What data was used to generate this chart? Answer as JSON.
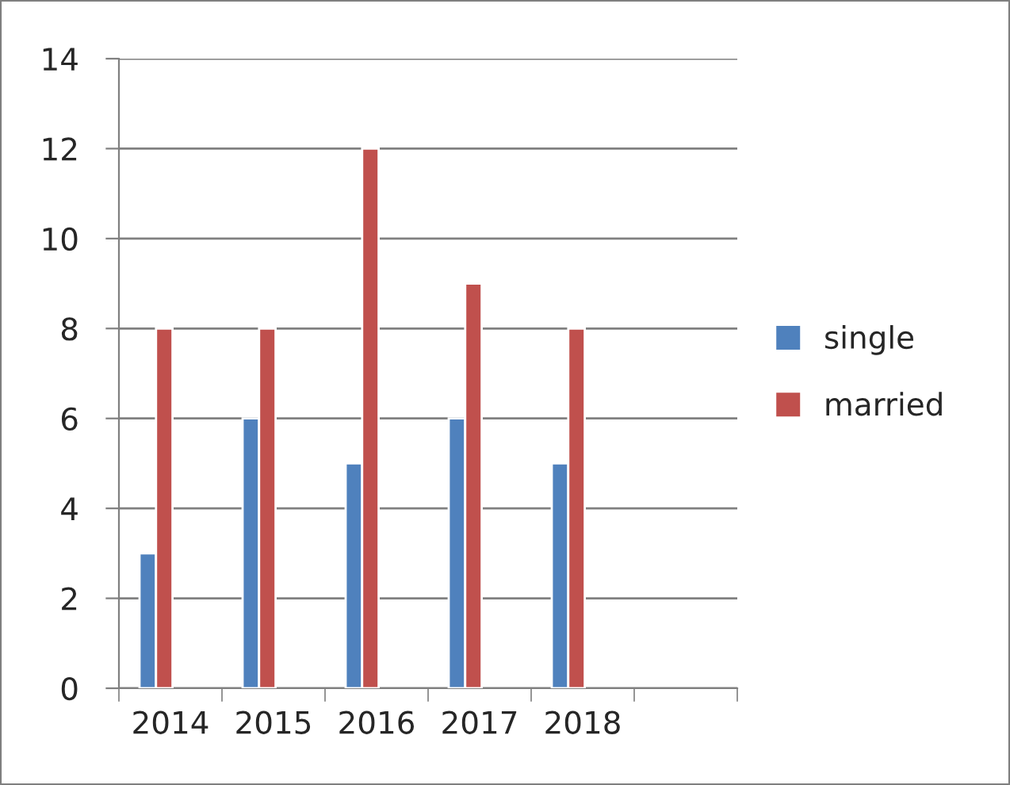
{
  "chart_data": {
    "type": "bar",
    "categories": [
      "2014",
      "2015",
      "2016",
      "2017",
      "2018",
      null
    ],
    "series": [
      {
        "name": "single",
        "color": "#4f81bd",
        "values": [
          3,
          6,
          5,
          6,
          5,
          null
        ]
      },
      {
        "name": "married",
        "color": "#c0504d",
        "values": [
          8,
          8,
          12,
          9,
          8,
          null
        ]
      }
    ],
    "ylim": [
      0,
      14
    ],
    "yticks": [
      0,
      2,
      4,
      6,
      8,
      10,
      12,
      14
    ],
    "grid": "y",
    "legend": "right"
  }
}
